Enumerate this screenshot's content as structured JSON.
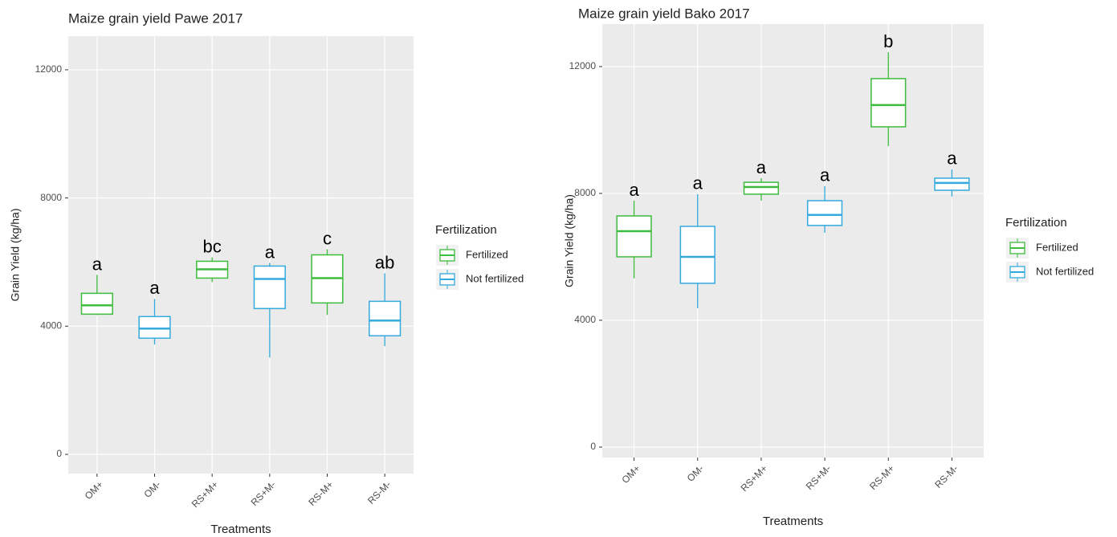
{
  "chart_data": [
    {
      "type": "box",
      "title": "Maize grain yield Pawe 2017",
      "xlabel": "Treatments",
      "ylabel": "Grain Yield (kg/ha)",
      "legend_title": "Fertilization",
      "categories": [
        "OM+",
        "OM-",
        "RS+M+",
        "RS+M-",
        "RS-M+",
        "RS-M-"
      ],
      "annotations": [
        "a",
        "a",
        "bc",
        "a",
        "c",
        "ab"
      ],
      "ylim": [
        -600,
        13050
      ],
      "yticks": [
        0,
        4000,
        8000,
        12000
      ],
      "grid": true,
      "series": [
        {
          "name": "Fertilized",
          "color": "#3dbb3d",
          "values": [
            {
              "min": 4350,
              "q1": 4375,
              "median": 4650,
              "q3": 5025,
              "max": 5600
            },
            null,
            {
              "min": 5375,
              "q1": 5500,
              "median": 5775,
              "q3": 6025,
              "max": 6150
            },
            null,
            {
              "min": 4350,
              "q1": 4725,
              "median": 5500,
              "q3": 6225,
              "max": 6400
            },
            null
          ]
        },
        {
          "name": "Not fertilized",
          "color": "#33aadd",
          "values": [
            null,
            {
              "min": 3425,
              "q1": 3625,
              "median": 3925,
              "q3": 4300,
              "max": 4850
            },
            null,
            {
              "min": 3025,
              "q1": 4550,
              "median": 5475,
              "q3": 5875,
              "max": 5975
            },
            null,
            {
              "min": 3375,
              "q1": 3700,
              "median": 4175,
              "q3": 4775,
              "max": 5650
            }
          ]
        }
      ]
    },
    {
      "type": "box",
      "title": "Maize grain yield Bako 2017",
      "xlabel": "Treatments",
      "ylabel": "Grain Yield (kg/ha)",
      "legend_title": "Fertilization",
      "categories": [
        "OM+",
        "OM-",
        "RS+M+",
        "RS+M-",
        "RS-M+",
        "RS-M-"
      ],
      "annotations": [
        "a",
        "a",
        "a",
        "a",
        "b",
        "a"
      ],
      "ylim": [
        -330,
        13340
      ],
      "yticks": [
        0,
        4000,
        8000,
        12000
      ],
      "grid": true,
      "series": [
        {
          "name": "Fertilized",
          "color": "#3dbb3d",
          "values": [
            {
              "min": 5320,
              "q1": 6000,
              "median": 6810,
              "q3": 7290,
              "max": 7770
            },
            null,
            {
              "min": 7770,
              "q1": 7975,
              "median": 8200,
              "q3": 8350,
              "max": 8480
            },
            null,
            {
              "min": 9490,
              "q1": 10100,
              "median": 10785,
              "q3": 11620,
              "max": 12455
            },
            null
          ]
        },
        {
          "name": "Not fertilized",
          "color": "#33aadd",
          "values": [
            null,
            {
              "min": 4380,
              "q1": 5165,
              "median": 6000,
              "q3": 6960,
              "max": 7975
            },
            null,
            {
              "min": 6760,
              "q1": 6990,
              "median": 7320,
              "q3": 7770,
              "max": 8230
            },
            null,
            {
              "min": 7900,
              "q1": 8100,
              "median": 8330,
              "q3": 8480,
              "max": 8760
            }
          ]
        }
      ]
    }
  ]
}
